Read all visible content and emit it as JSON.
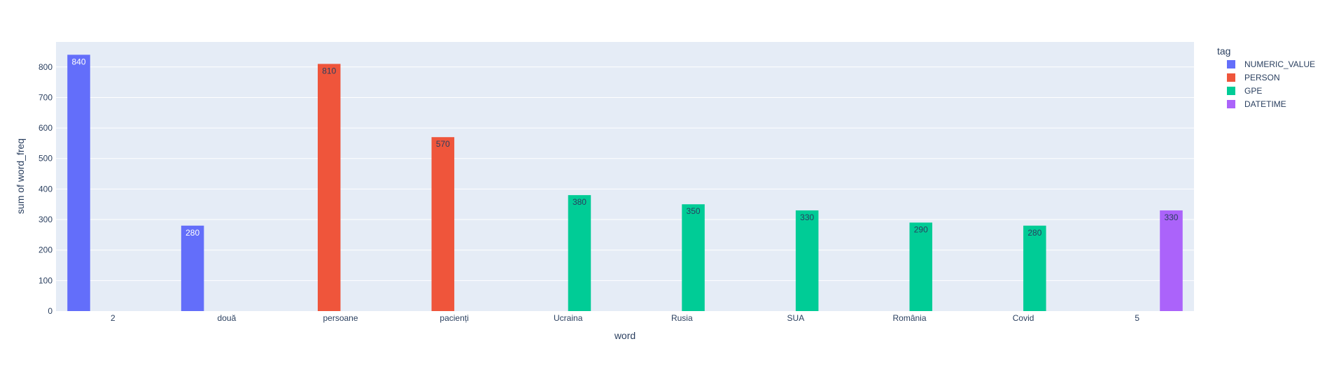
{
  "chart_data": {
    "type": "bar",
    "barmode": "group",
    "categories": [
      "2",
      "două",
      "persoane",
      "pacienți",
      "Ucraina",
      "Rusia",
      "SUA",
      "România",
      "Covid",
      "5"
    ],
    "series": [
      {
        "name": "NUMERIC_VALUE",
        "color": "#636efa",
        "values": [
          840,
          280,
          null,
          null,
          null,
          null,
          null,
          null,
          null,
          null
        ]
      },
      {
        "name": "PERSON",
        "color": "#EF553B",
        "values": [
          null,
          null,
          810,
          570,
          null,
          null,
          null,
          null,
          null,
          null
        ]
      },
      {
        "name": "GPE",
        "color": "#00cc96",
        "values": [
          null,
          null,
          null,
          null,
          380,
          350,
          330,
          290,
          280,
          null
        ]
      },
      {
        "name": "DATETIME",
        "color": "#ab63fa",
        "values": [
          null,
          null,
          null,
          null,
          null,
          null,
          null,
          null,
          null,
          330
        ]
      }
    ],
    "xlabel": "word",
    "ylabel": "sum of word_freq",
    "ylim": [
      0,
      882
    ],
    "yticks": [
      0,
      100,
      200,
      300,
      400,
      500,
      600,
      700,
      800
    ],
    "grid": true,
    "legend_title": "tag",
    "legend_position": "top-right",
    "plot_bgcolor": "#e5ecf6"
  }
}
